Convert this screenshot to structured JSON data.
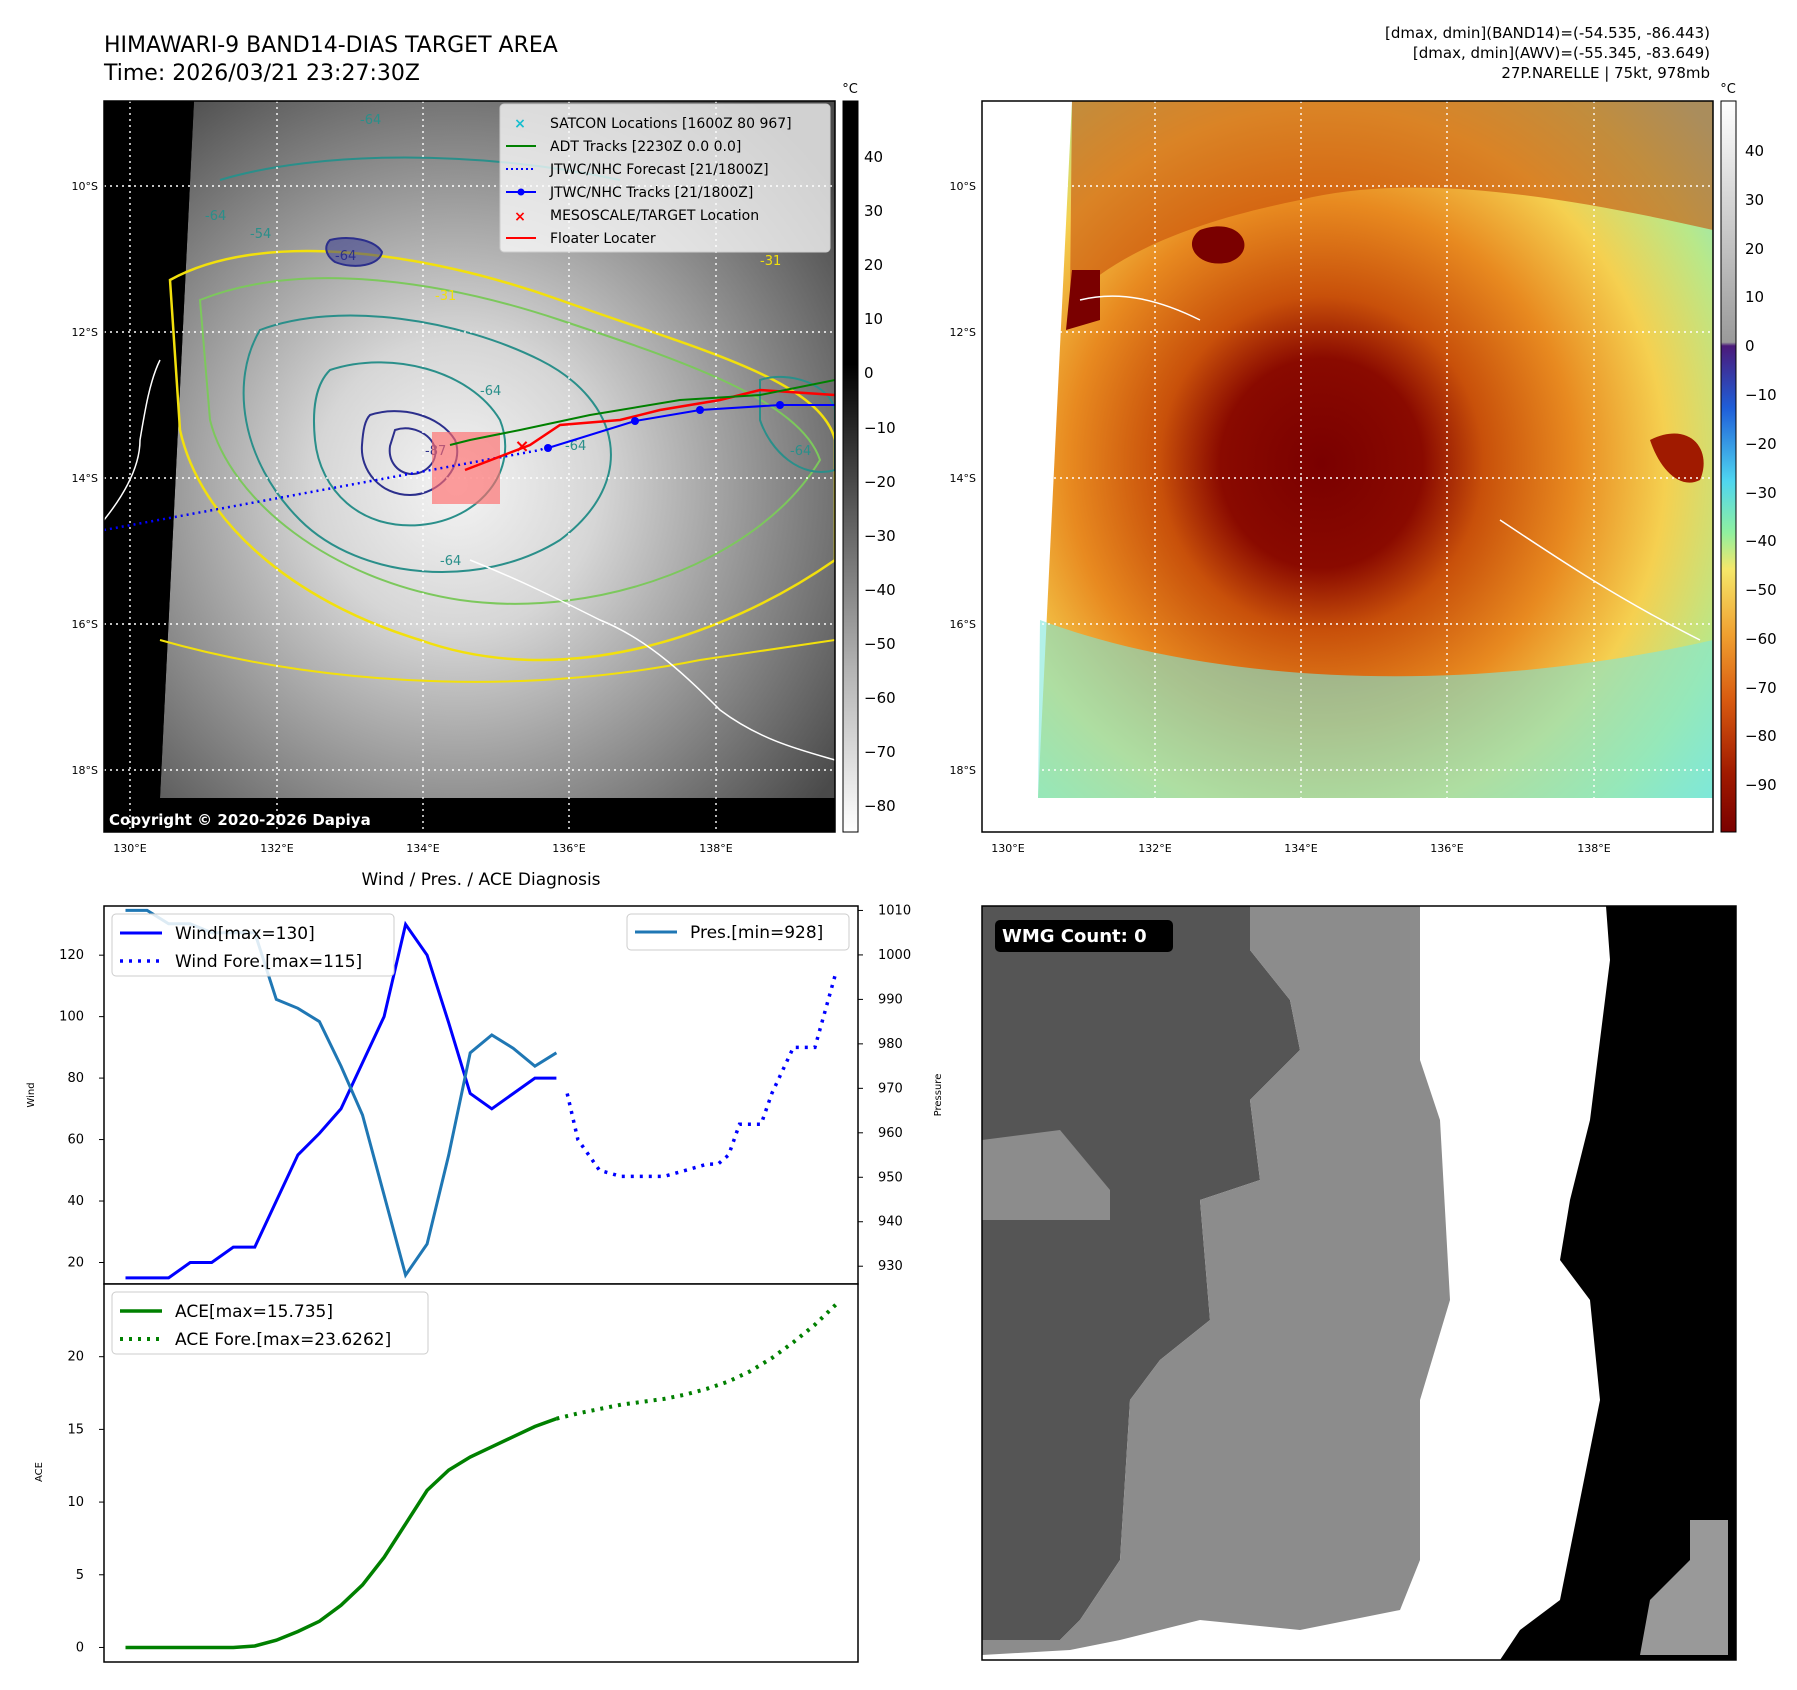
{
  "header": {
    "title_line1": "HIMAWARI-9 BAND14-DIAS TARGET AREA",
    "title_line2": "Time: 2026/03/21 23:27:30Z",
    "info_line1": "[dmax, dmin](BAND14)=(-54.535, -86.443)",
    "info_line2": "[dmax, dmin](AWV)=(-55.345, -83.649)",
    "info_line3": "27P.NARELLE | 75kt, 978mb"
  },
  "map": {
    "lat_labels": [
      "10°S",
      "12°S",
      "14°S",
      "16°S",
      "18°S"
    ],
    "lon_labels": [
      "130°E",
      "132°E",
      "134°E",
      "136°E",
      "138°E"
    ],
    "copyright": "Copyright © 2020-2026 Dapiya",
    "contour_labels": [
      "-64",
      "-64",
      "-54",
      "-31",
      "-64",
      "-31",
      "-64",
      "-64",
      "-87",
      "-64",
      "-64"
    ],
    "legend": [
      {
        "marker": "x",
        "color": "#17becf",
        "label": "SATCON Locations [1600Z 80 967]"
      },
      {
        "marker": "line",
        "color": "#008000",
        "label": "ADT Tracks [2230Z 0.0 0.0]"
      },
      {
        "marker": "dotted",
        "color": "#0000ff",
        "label": "JTWC/NHC Forecast [21/1800Z]"
      },
      {
        "marker": "line-dot",
        "color": "#0000ff",
        "label": "JTWC/NHC Tracks [21/1800Z]"
      },
      {
        "marker": "x",
        "color": "#ff0000",
        "label": "MESOSCALE/TARGET Location"
      },
      {
        "marker": "line",
        "color": "#ff0000",
        "label": "Floater Locater"
      }
    ]
  },
  "colorbar_gray": {
    "unit": "°C",
    "ticks": [
      "40",
      "30",
      "20",
      "10",
      "0",
      "−10",
      "−20",
      "−30",
      "−40",
      "−50",
      "−60",
      "−70",
      "−80"
    ]
  },
  "colorbar_color": {
    "unit": "°C",
    "ticks": [
      "40",
      "30",
      "20",
      "10",
      "0",
      "−10",
      "−20",
      "−30",
      "−40",
      "−50",
      "−60",
      "−70",
      "−80",
      "−90"
    ]
  },
  "wmg": {
    "label": "WMG Count: 0"
  },
  "colors": {
    "wind": "#0000ff",
    "pressure": "#1f77b4",
    "ace": "#008000",
    "contour_yellow": "#f2e00c",
    "contour_green": "#7cc85c",
    "contour_teal": "#2a8f8a",
    "contour_navy": "#2c2f8c"
  },
  "chart_data": [
    {
      "type": "line",
      "title": "Wind / Pres. / ACE Diagnosis",
      "ylabel": "Wind",
      "y2label": "Pressure",
      "ylim": [
        13,
        136
      ],
      "y2lim": [
        926,
        1011
      ],
      "yticks": [
        20,
        40,
        60,
        80,
        100,
        120
      ],
      "y2ticks": [
        930,
        940,
        950,
        960,
        970,
        980,
        990,
        1000,
        1010
      ],
      "legend_left": [
        "Wind[max=130]",
        "Wind Fore.[max=115]"
      ],
      "legend_right": [
        "Pres.[min=928]"
      ],
      "series": [
        {
          "name": "Wind",
          "style": "solid",
          "x": [
            0,
            1,
            2,
            3,
            4,
            5,
            6,
            7,
            8,
            9,
            10,
            11,
            12,
            13,
            14,
            15,
            16,
            17,
            18,
            19,
            20
          ],
          "values": [
            15,
            15,
            15,
            20,
            20,
            25,
            25,
            40,
            55,
            62,
            70,
            85,
            100,
            130,
            120,
            98,
            75,
            70,
            75,
            80,
            80
          ]
        },
        {
          "name": "Wind Fore.",
          "style": "dotted",
          "x": [
            20.5,
            21,
            22,
            23,
            24,
            25,
            26,
            27,
            27.5,
            28,
            28.5,
            29,
            29.5,
            30,
            31,
            32,
            33
          ],
          "values": [
            75,
            60,
            50,
            48,
            48,
            48,
            50,
            52,
            52,
            55,
            65,
            65,
            65,
            75,
            90,
            90,
            115
          ]
        },
        {
          "name": "Pres.",
          "style": "solid",
          "axis": "right",
          "x": [
            0,
            1,
            2,
            3,
            4,
            5,
            6,
            7,
            8,
            9,
            10,
            11,
            12,
            13,
            14,
            15,
            16,
            17,
            18,
            19,
            20
          ],
          "values": [
            1010,
            1010,
            1007,
            1007,
            1005,
            1005,
            1005,
            990,
            988,
            985,
            975,
            964,
            946,
            928,
            935,
            955,
            978,
            982,
            979,
            975,
            978
          ]
        }
      ]
    },
    {
      "type": "line",
      "ylabel": "ACE",
      "ylim": [
        -1,
        25
      ],
      "yticks": [
        0,
        5,
        10,
        15,
        20
      ],
      "legend_left": [
        "ACE[max=15.735]",
        "ACE Fore.[max=23.6262]"
      ],
      "series": [
        {
          "name": "ACE",
          "style": "solid",
          "x": [
            0,
            1,
            2,
            3,
            4,
            5,
            6,
            7,
            8,
            9,
            10,
            11,
            12,
            13,
            14,
            15,
            16,
            17,
            18,
            19,
            20
          ],
          "values": [
            0,
            0,
            0,
            0,
            0,
            0,
            0.1,
            0.5,
            1.1,
            1.8,
            2.9,
            4.3,
            6.2,
            8.5,
            10.8,
            12.2,
            13.1,
            13.8,
            14.5,
            15.2,
            15.735
          ]
        },
        {
          "name": "ACE Fore.",
          "style": "dotted",
          "x": [
            20,
            21,
            22,
            23,
            24,
            25,
            26,
            27,
            28,
            29,
            30,
            31,
            32,
            33
          ],
          "values": [
            15.735,
            16.1,
            16.4,
            16.7,
            16.9,
            17.1,
            17.4,
            17.8,
            18.3,
            19.0,
            19.9,
            21.0,
            22.2,
            23.6262
          ]
        }
      ]
    }
  ]
}
